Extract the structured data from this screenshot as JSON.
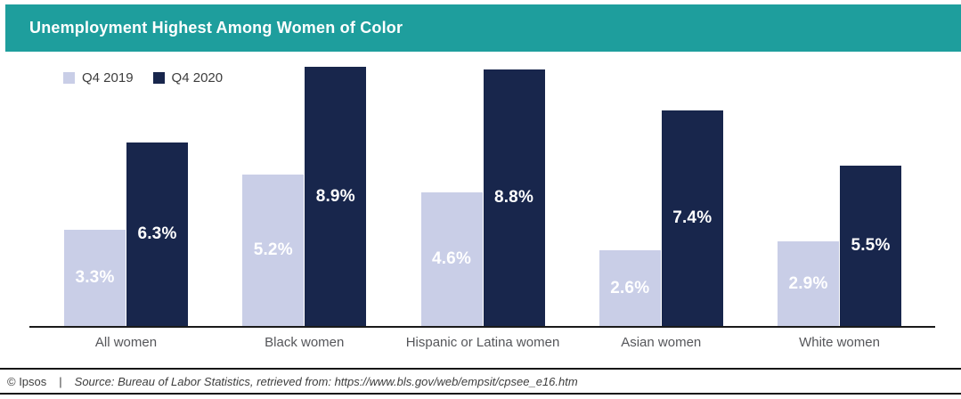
{
  "header": {
    "title": "Unemployment Highest Among Women of Color"
  },
  "legend": [
    {
      "label": "Q4 2019",
      "color": "#c9cee7"
    },
    {
      "label": "Q4 2020",
      "color": "#18264c"
    }
  ],
  "chart_data": {
    "type": "bar",
    "title": "Unemployment Highest Among Women of Color",
    "categories": [
      "All women",
      "Black women",
      "Hispanic or Latina women",
      "Asian women",
      "White women"
    ],
    "series": [
      {
        "name": "Q4 2019",
        "color": "#c9cee7",
        "values": [
          3.3,
          5.2,
          4.6,
          2.6,
          2.9
        ],
        "labels": [
          "3.3%",
          "5.2%",
          "4.6%",
          "2.6%",
          "2.9%"
        ]
      },
      {
        "name": "Q4 2020",
        "color": "#18264c",
        "values": [
          6.3,
          8.9,
          8.8,
          7.4,
          5.5
        ],
        "labels": [
          "6.3%",
          "8.9%",
          "8.8%",
          "7.4%",
          "5.5%"
        ]
      }
    ],
    "xlabel": "",
    "ylabel": "",
    "ylim": [
      0,
      9.3
    ],
    "grid": false,
    "legend_position": "top-left",
    "value_labels": "inside-center-white"
  },
  "footer": {
    "copyright": "© Ipsos",
    "separator": "|",
    "source": "Source: Bureau of Labor Statistics, retrieved from: https://www.bls.gov/web/empsit/cpsee_e16.htm"
  },
  "colors": {
    "banner_teal": "#1e9e9d",
    "bar_light": "#c9cee7",
    "bar_dark": "#18264c",
    "axis_line": "#1a1a1a"
  }
}
